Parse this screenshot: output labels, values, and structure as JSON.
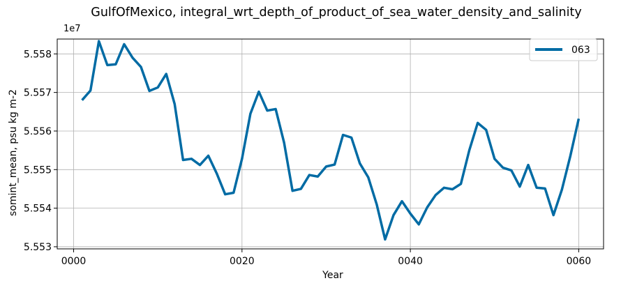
{
  "chart_data": {
    "type": "line",
    "title": "GulfOfMexico, integral_wrt_depth_of_product_of_sea_water_density_and_salinity",
    "xlabel": "Year",
    "ylabel": "somint_mean, psu kg m-2",
    "y_offset_label": "1e7",
    "y_scale_factor": 10000000,
    "xlim": [
      -1.95,
      62.95
    ],
    "ylim": [
      55529450,
      55583850
    ],
    "x_ticks": [
      0,
      20,
      40,
      60
    ],
    "x_tick_labels": [
      "0000",
      "0020",
      "0040",
      "0060"
    ],
    "y_ticks": [
      55530000,
      55540000,
      55550000,
      55560000,
      55570000,
      55580000
    ],
    "y_tick_labels": [
      "5.553",
      "5.554",
      "5.555",
      "5.556",
      "5.557",
      "5.558"
    ],
    "grid": true,
    "legend_position": "upper right",
    "series": [
      {
        "name": "063",
        "color": "#006ba4",
        "x": [
          1,
          2,
          3,
          4,
          5,
          6,
          7,
          8,
          9,
          10,
          11,
          12,
          13,
          14,
          15,
          16,
          17,
          18,
          19,
          20,
          21,
          22,
          23,
          24,
          25,
          26,
          27,
          28,
          29,
          30,
          31,
          32,
          33,
          34,
          35,
          36,
          37,
          38,
          39,
          40,
          41,
          42,
          43,
          44,
          45,
          46,
          47,
          48,
          49,
          50,
          51,
          52,
          53,
          54,
          55,
          56,
          57,
          58,
          59,
          60
        ],
        "values": [
          55568000,
          55570500,
          55583300,
          55577100,
          55577300,
          55582500,
          55579000,
          55576600,
          55570400,
          55571300,
          55574800,
          55567000,
          55552500,
          55552800,
          55551200,
          55553600,
          55549000,
          55543600,
          55544000,
          55552800,
          55564500,
          55570200,
          55565300,
          55565700,
          55557000,
          55544500,
          55545000,
          55548600,
          55548200,
          55550800,
          55551300,
          55559000,
          55558300,
          55551600,
          55548000,
          55541000,
          55531900,
          55538200,
          55541800,
          55538600,
          55535800,
          55540200,
          55543400,
          55545300,
          55544900,
          55546300,
          55555000,
          55562100,
          55560300,
          55552800,
          55550500,
          55549800,
          55545600,
          55551200,
          55545300,
          55545100,
          55538200,
          55544800,
          55553500,
          55563200
        ]
      }
    ]
  }
}
